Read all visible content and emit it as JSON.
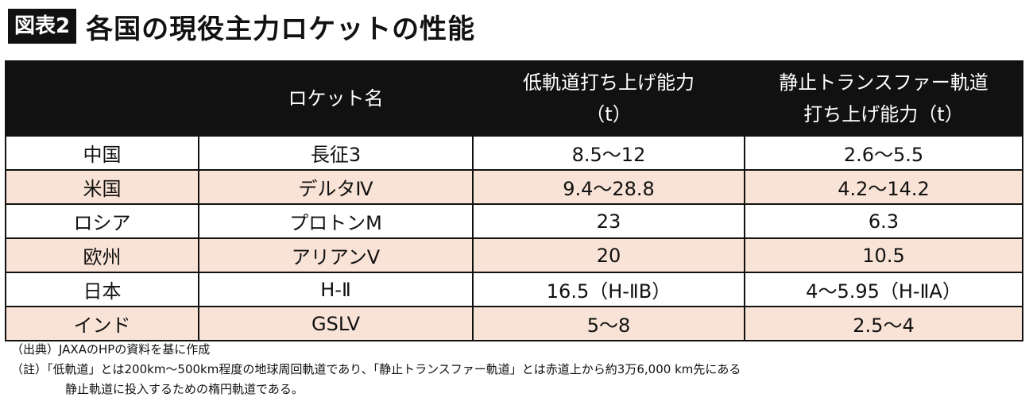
{
  "title": {
    "badge": "図表2",
    "text": "各国の現役主力ロケットの性能"
  },
  "table": {
    "header": {
      "country": "",
      "rocket_name": "ロケット名",
      "leo_line1": "低軌道打ち上げ能力",
      "leo_line2": "（t）",
      "gto_line1": "静止トランスファー軌道",
      "gto_line2": "打ち上げ能力（t）"
    },
    "rows": [
      {
        "country": "中国",
        "rocket": "長征3",
        "leo": "8.5〜12",
        "gto": "2.6〜5.5"
      },
      {
        "country": "米国",
        "rocket": "デルタⅣ",
        "leo": "9.4〜28.8",
        "gto": "4.2〜14.2"
      },
      {
        "country": "ロシア",
        "rocket": "プロトンM",
        "leo": "23",
        "gto": "6.3"
      },
      {
        "country": "欧州",
        "rocket": "アリアンⅤ",
        "leo": "20",
        "gto": "10.5"
      },
      {
        "country": "日本",
        "rocket": "H-Ⅱ",
        "leo": "16.5（H-ⅡB）",
        "gto": "4〜5.95（H-ⅡA）"
      },
      {
        "country": "インド",
        "rocket": "GSLV",
        "leo": "5〜8",
        "gto": "2.5〜4"
      }
    ]
  },
  "notes": {
    "source": "（出典）JAXAのHPの資料を基に作成",
    "note_line1": "（註）「低軌道」とは200km〜500km程度の地球周回軌道であり、「静止トランスファー軌道」とは赤道上から約3万6,000 km先にある",
    "note_line2": "静止軌道に投入するための楕円軌道である。"
  },
  "colors": {
    "header_bg": "#111111",
    "row_alt_bg": "#f9e3d6",
    "row_bg": "#ffffff"
  }
}
